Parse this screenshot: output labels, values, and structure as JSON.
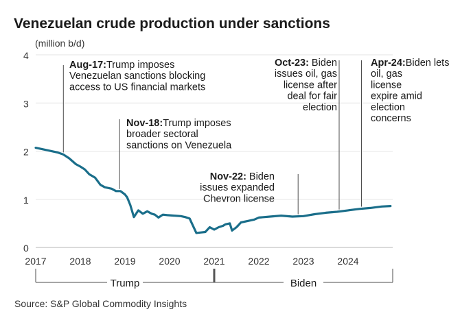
{
  "chart_data": {
    "type": "line",
    "title": "Venezuelan crude production under sanctions",
    "ylabel": "(million b/d)",
    "ylim": [
      0,
      4
    ],
    "yticks": [
      0,
      1,
      2,
      3,
      4
    ],
    "xlim": [
      2017,
      2025
    ],
    "xticks": [
      2017,
      2018,
      2019,
      2020,
      2021,
      2022,
      2023,
      2024
    ],
    "grid": true,
    "line_color": "#1a6e8a",
    "series": [
      {
        "name": "Venezuelan crude production",
        "x": [
          2017.0,
          2017.25,
          2017.5,
          2017.62,
          2017.75,
          2017.9,
          2018.0,
          2018.1,
          2018.2,
          2018.33,
          2018.45,
          2018.55,
          2018.7,
          2018.8,
          2018.9,
          2019.0,
          2019.05,
          2019.12,
          2019.2,
          2019.3,
          2019.4,
          2019.5,
          2019.6,
          2019.67,
          2019.75,
          2019.85,
          2019.95,
          2020.1,
          2020.25,
          2020.35,
          2020.45,
          2020.5,
          2020.6,
          2020.7,
          2020.8,
          2020.9,
          2021.0,
          2021.1,
          2021.2,
          2021.25,
          2021.35,
          2021.4,
          2021.5,
          2021.6,
          2021.75,
          2021.9,
          2022.0,
          2022.25,
          2022.5,
          2022.75,
          2023.0,
          2023.25,
          2023.5,
          2023.75,
          2024.0,
          2024.25,
          2024.5,
          2024.75,
          2024.95
        ],
        "values": [
          2.07,
          2.02,
          1.97,
          1.93,
          1.85,
          1.73,
          1.68,
          1.62,
          1.52,
          1.45,
          1.3,
          1.25,
          1.22,
          1.17,
          1.17,
          1.1,
          1.04,
          0.88,
          0.63,
          0.77,
          0.7,
          0.75,
          0.7,
          0.68,
          0.62,
          0.68,
          0.67,
          0.66,
          0.65,
          0.63,
          0.6,
          0.5,
          0.3,
          0.31,
          0.32,
          0.42,
          0.37,
          0.42,
          0.45,
          0.48,
          0.5,
          0.35,
          0.42,
          0.52,
          0.55,
          0.58,
          0.62,
          0.64,
          0.66,
          0.64,
          0.65,
          0.69,
          0.72,
          0.74,
          0.77,
          0.8,
          0.82,
          0.85,
          0.86
        ]
      }
    ],
    "annotations": [
      {
        "date": "Aug-17:",
        "text": [
          "Trump imposes",
          "Venezuelan sanctions blocking",
          "access to US financial markets"
        ],
        "x": 2017.62,
        "align": "left"
      },
      {
        "date": "Nov-18:",
        "text": [
          "Trump imposes",
          "broader sectoral",
          "sanctions on Venezuela"
        ],
        "x": 2018.88,
        "align": "left"
      },
      {
        "date": "Nov-22:",
        "text": [
          "Biden",
          "issues expanded",
          "Chevron license"
        ],
        "x": 2022.88,
        "align": "right"
      },
      {
        "date": "Oct-23:",
        "text": [
          "Biden",
          "issues oil, gas",
          "license after",
          "deal for fair",
          "election"
        ],
        "x": 2023.8,
        "align": "right"
      },
      {
        "date": "Apr-24:",
        "text": [
          "Biden lets",
          "oil, gas",
          "license",
          "expire amid",
          "election",
          "concerns"
        ],
        "x": 2024.3,
        "align": "left"
      }
    ],
    "eras": [
      {
        "label": "Trump",
        "from": 2017,
        "to": 2021
      },
      {
        "label": "Biden",
        "from": 2021,
        "to": 2025
      }
    ],
    "source": "Source: S&P Global Commodity Insights"
  }
}
